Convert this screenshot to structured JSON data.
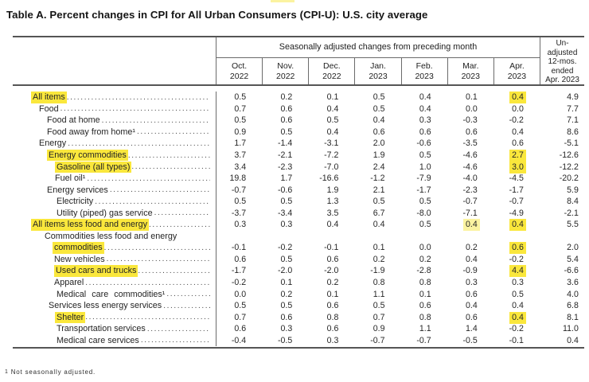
{
  "title": "Table A. Percent changes in CPI for All Urban Consumers (CPI-U): U.S. city average",
  "header": {
    "group_label": "Seasonally adjusted changes from preceding month",
    "months": [
      [
        "Oct.",
        "2022"
      ],
      [
        "Nov.",
        "2022"
      ],
      [
        "Dec.",
        "2022"
      ],
      [
        "Jan.",
        "2023"
      ],
      [
        "Feb.",
        "2023"
      ],
      [
        "Mar.",
        "2023"
      ],
      [
        "Apr.",
        "2023"
      ]
    ],
    "unadjusted_lines": [
      "Un-",
      "adjusted",
      "12-mos.",
      "ended",
      "Apr. 2023"
    ]
  },
  "rows": [
    {
      "label": "All items",
      "indent": 23,
      "label_hl": true,
      "values": [
        "0.5",
        "0.2",
        "0.1",
        "0.5",
        "0.4",
        "0.1",
        "0.4",
        "4.9"
      ],
      "hl": [
        6
      ]
    },
    {
      "label": "Food",
      "indent": 33,
      "values": [
        "0.7",
        "0.6",
        "0.4",
        "0.5",
        "0.4",
        "0.0",
        "0.0",
        "7.7"
      ]
    },
    {
      "label": "Food at home",
      "indent": 43,
      "values": [
        "0.5",
        "0.6",
        "0.5",
        "0.4",
        "0.3",
        "-0.3",
        "-0.2",
        "7.1"
      ]
    },
    {
      "label": "Food away from home¹",
      "indent": 43,
      "values": [
        "0.9",
        "0.5",
        "0.4",
        "0.6",
        "0.6",
        "0.6",
        "0.4",
        "8.6"
      ]
    },
    {
      "label": "Energy",
      "indent": 33,
      "values": [
        "1.7",
        "-1.4",
        "-3.1",
        "2.0",
        "-0.6",
        "-3.5",
        "0.6",
        "-5.1"
      ]
    },
    {
      "label": "Energy commodities",
      "indent": 43,
      "label_hl": true,
      "values": [
        "3.7",
        "-2.1",
        "-7.2",
        "1.9",
        "0.5",
        "-4.6",
        "2.7",
        "-12.6"
      ],
      "hl": [
        6
      ]
    },
    {
      "label": "Gasoline (all types)",
      "indent": 53,
      "label_hl": true,
      "values": [
        "3.4",
        "-2.3",
        "-7.0",
        "2.4",
        "1.0",
        "-4.6",
        "3.0",
        "-12.2"
      ],
      "hl": [
        6
      ]
    },
    {
      "label": "Fuel oil¹",
      "indent": 53,
      "values": [
        "19.8",
        "1.7",
        "-16.6",
        "-1.2",
        "-7.9",
        "-4.0",
        "-4.5",
        "-20.2"
      ]
    },
    {
      "label": "Energy services",
      "indent": 43,
      "values": [
        "-0.7",
        "-0.6",
        "1.9",
        "2.1",
        "-1.7",
        "-2.3",
        "-1.7",
        "5.9"
      ]
    },
    {
      "label": "Electricity",
      "indent": 55,
      "values": [
        "0.5",
        "0.5",
        "1.3",
        "0.5",
        "0.5",
        "-0.7",
        "-0.7",
        "8.4"
      ]
    },
    {
      "label": "Utility (piped) gas service",
      "indent": 55,
      "values": [
        "-3.7",
        "-3.4",
        "3.5",
        "6.7",
        "-8.0",
        "-7.1",
        "-4.9",
        "-2.1"
      ]
    },
    {
      "label": "All items less food and energy",
      "indent": 23,
      "label_hl": true,
      "values": [
        "0.3",
        "0.3",
        "0.4",
        "0.4",
        "0.5",
        "0.4",
        "0.4",
        "5.5"
      ],
      "hl": [
        6
      ],
      "hl_light": [
        5
      ]
    },
    {
      "label": "Commodities less food and energy",
      "indent": 40,
      "no_leader": true
    },
    {
      "label": "commodities",
      "indent": 50,
      "label_hl": true,
      "values": [
        "-0.1",
        "-0.2",
        "-0.1",
        "0.1",
        "0.0",
        "0.2",
        "0.6",
        "2.0"
      ],
      "hl": [
        6
      ]
    },
    {
      "label": "New vehicles",
      "indent": 52,
      "values": [
        "0.6",
        "0.5",
        "0.6",
        "0.2",
        "0.2",
        "0.4",
        "-0.2",
        "5.4"
      ]
    },
    {
      "label": "Used cars and trucks",
      "indent": 52,
      "label_hl": true,
      "values": [
        "-1.7",
        "-2.0",
        "-2.0",
        "-1.9",
        "-2.8",
        "-0.9",
        "4.4",
        "-6.6"
      ],
      "hl": [
        6
      ]
    },
    {
      "label": "Apparel",
      "indent": 52,
      "values": [
        "-0.2",
        "0.1",
        "0.2",
        "0.8",
        "0.8",
        "0.3",
        "0.3",
        "3.6"
      ]
    },
    {
      "label": "Medical care commodities¹",
      "indent": 55,
      "wide": true,
      "values": [
        "0.0",
        "0.2",
        "0.1",
        "1.1",
        "0.1",
        "0.6",
        "0.5",
        "4.0"
      ]
    },
    {
      "label": "Services less energy services",
      "indent": 45,
      "values": [
        "0.5",
        "0.5",
        "0.6",
        "0.5",
        "0.6",
        "0.4",
        "0.4",
        "6.8"
      ]
    },
    {
      "label": "Shelter",
      "indent": 53,
      "label_hl": true,
      "values": [
        "0.7",
        "0.6",
        "0.8",
        "0.7",
        "0.8",
        "0.6",
        "0.4",
        "8.1"
      ],
      "hl": [
        6
      ]
    },
    {
      "label": "Transportation services",
      "indent": 55,
      "values": [
        "0.6",
        "0.3",
        "0.6",
        "0.9",
        "1.1",
        "1.4",
        "-0.2",
        "11.0"
      ]
    },
    {
      "label": "Medical care services",
      "indent": 55,
      "values": [
        "-0.4",
        "-0.5",
        "0.3",
        "-0.7",
        "-0.7",
        "-0.5",
        "-0.1",
        "0.4"
      ]
    }
  ],
  "footnote": {
    "marker": "1",
    "text": "Not seasonally adjusted."
  },
  "colors": {
    "highlight": "#fae73c",
    "highlight_light": "#fbf3a0",
    "border_heavy": "#555555",
    "border_light": "#6b6b6b"
  }
}
